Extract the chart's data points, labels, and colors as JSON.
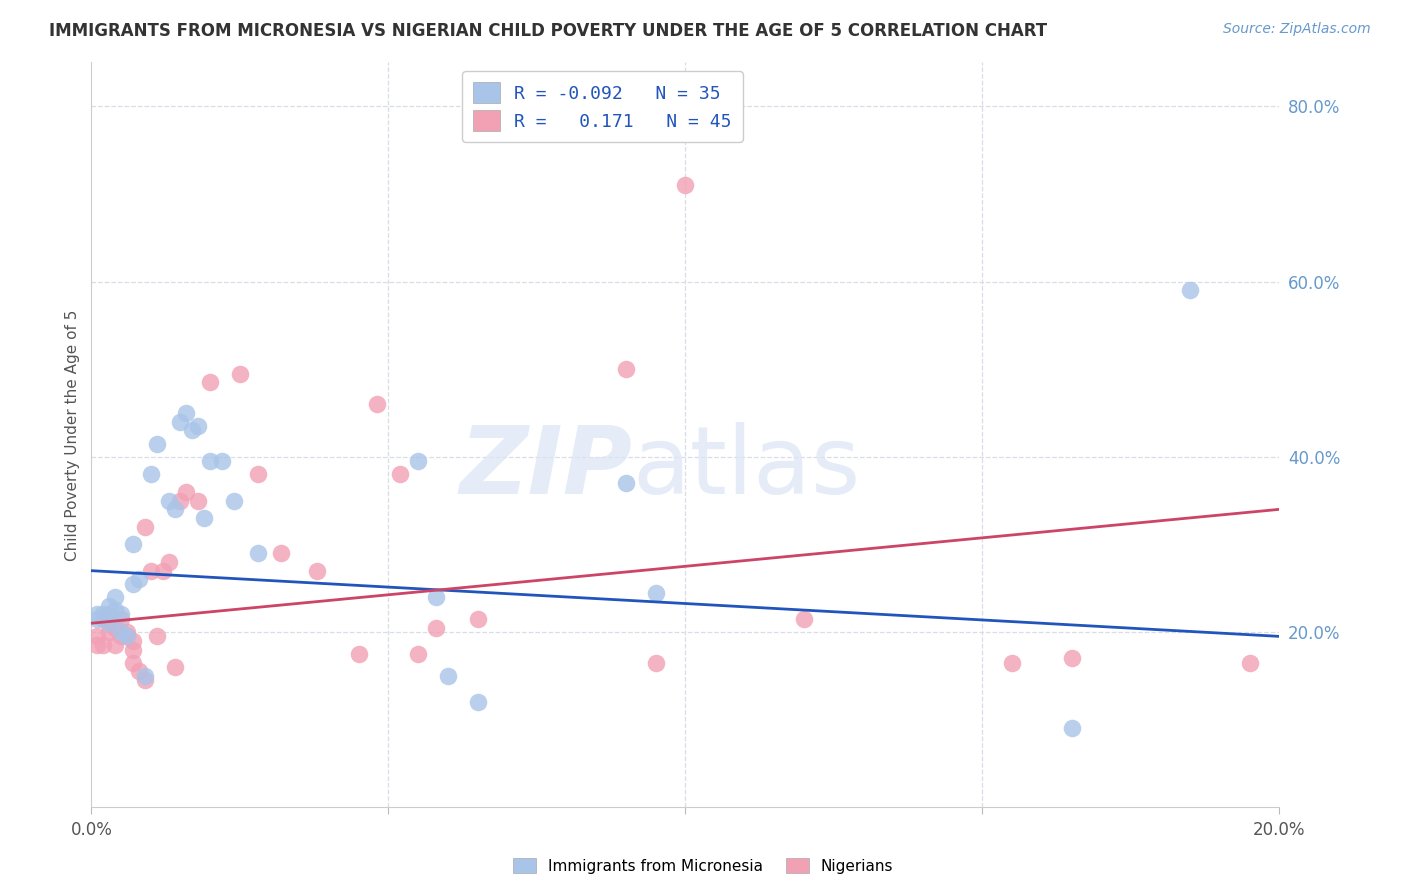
{
  "title": "IMMIGRANTS FROM MICRONESIA VS NIGERIAN CHILD POVERTY UNDER THE AGE OF 5 CORRELATION CHART",
  "source": "Source: ZipAtlas.com",
  "ylabel": "Child Poverty Under the Age of 5",
  "xlim": [
    0.0,
    0.2
  ],
  "ylim": [
    0.0,
    0.85
  ],
  "xtick_positions": [
    0.0,
    0.05,
    0.1,
    0.15,
    0.2
  ],
  "xtick_labels": [
    "0.0%",
    "",
    "",
    "",
    "20.0%"
  ],
  "right_ytick_positions": [
    0.2,
    0.4,
    0.6,
    0.8
  ],
  "right_ytick_labels": [
    "20.0%",
    "40.0%",
    "60.0%",
    "80.0%"
  ],
  "blue_color": "#a8c4e8",
  "pink_color": "#f2a0b4",
  "blue_line_color": "#2255bb",
  "pink_line_color": "#cc4466",
  "axis_label_color": "#555555",
  "right_axis_color": "#6699cc",
  "title_color": "#333333",
  "grid_color": "#d8dde8",
  "background_color": "#ffffff",
  "legend_r1_label": "R = -0.092   N = 35",
  "legend_r2_label": "R =   0.171   N = 45",
  "legend_text_color": "#2255bb",
  "blue_points_x": [
    0.001,
    0.001,
    0.002,
    0.003,
    0.003,
    0.004,
    0.004,
    0.005,
    0.005,
    0.006,
    0.007,
    0.007,
    0.008,
    0.009,
    0.01,
    0.011,
    0.013,
    0.014,
    0.015,
    0.016,
    0.017,
    0.018,
    0.019,
    0.02,
    0.022,
    0.024,
    0.028,
    0.055,
    0.058,
    0.06,
    0.065,
    0.09,
    0.095,
    0.165,
    0.185
  ],
  "blue_points_y": [
    0.22,
    0.215,
    0.22,
    0.21,
    0.23,
    0.225,
    0.24,
    0.2,
    0.22,
    0.195,
    0.255,
    0.3,
    0.26,
    0.15,
    0.38,
    0.415,
    0.35,
    0.34,
    0.44,
    0.45,
    0.43,
    0.435,
    0.33,
    0.395,
    0.395,
    0.35,
    0.29,
    0.395,
    0.24,
    0.15,
    0.12,
    0.37,
    0.245,
    0.09,
    0.59
  ],
  "pink_points_x": [
    0.001,
    0.001,
    0.002,
    0.002,
    0.003,
    0.003,
    0.003,
    0.004,
    0.004,
    0.005,
    0.005,
    0.006,
    0.006,
    0.007,
    0.007,
    0.007,
    0.008,
    0.009,
    0.009,
    0.01,
    0.011,
    0.012,
    0.013,
    0.014,
    0.015,
    0.016,
    0.018,
    0.02,
    0.025,
    0.028,
    0.032,
    0.038,
    0.045,
    0.048,
    0.052,
    0.055,
    0.058,
    0.065,
    0.09,
    0.095,
    0.1,
    0.12,
    0.155,
    0.165,
    0.195
  ],
  "pink_points_y": [
    0.195,
    0.185,
    0.215,
    0.185,
    0.22,
    0.21,
    0.2,
    0.205,
    0.185,
    0.215,
    0.195,
    0.195,
    0.2,
    0.18,
    0.165,
    0.19,
    0.155,
    0.145,
    0.32,
    0.27,
    0.195,
    0.27,
    0.28,
    0.16,
    0.35,
    0.36,
    0.35,
    0.485,
    0.495,
    0.38,
    0.29,
    0.27,
    0.175,
    0.46,
    0.38,
    0.175,
    0.205,
    0.215,
    0.5,
    0.165,
    0.71,
    0.215,
    0.165,
    0.17,
    0.165
  ],
  "blue_trend_x": [
    0.0,
    0.2
  ],
  "blue_trend_y": [
    0.27,
    0.195
  ],
  "pink_trend_x": [
    0.0,
    0.2
  ],
  "pink_trend_y": [
    0.21,
    0.34
  ],
  "legend_blue_label": "Immigrants from Micronesia",
  "legend_pink_label": "Nigerians"
}
